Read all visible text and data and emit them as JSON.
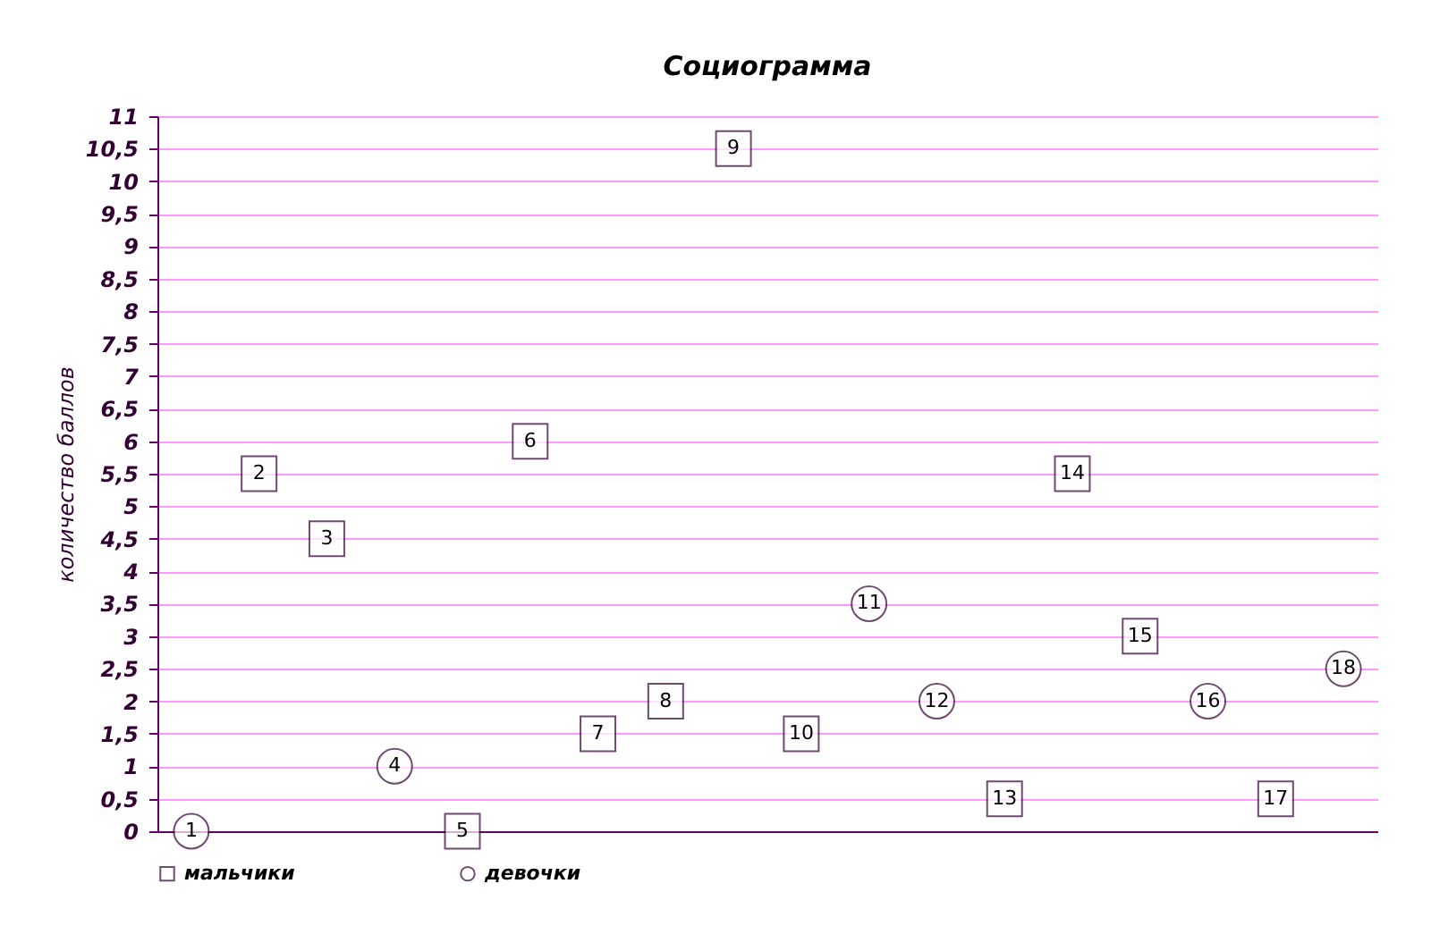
{
  "chart_data": {
    "type": "scatter",
    "title": "Социограмма",
    "ylabel": "количество баллов",
    "categories": [
      "1",
      "2",
      "3",
      "4",
      "5",
      "6",
      "7",
      "8",
      "9",
      "10",
      "11",
      "12",
      "13",
      "14",
      "15",
      "16",
      "17",
      "18"
    ],
    "series": [
      {
        "name": "мальчики",
        "color": "#330033",
        "marker": "square",
        "values": [
          null,
          5.5,
          4.5,
          null,
          0,
          6,
          1.5,
          2,
          10.5,
          1.5,
          null,
          null,
          0.5,
          5.5,
          3,
          null,
          0.5,
          null
        ]
      },
      {
        "name": "девочки",
        "color": "#330033",
        "marker": "circle",
        "values": [
          0,
          null,
          null,
          1,
          null,
          null,
          null,
          null,
          null,
          null,
          3.5,
          2,
          null,
          null,
          null,
          2,
          null,
          2.5
        ]
      }
    ],
    "ylim": [
      0,
      11
    ],
    "yticks": [
      0,
      {
        "value": 0.5,
        "label": "0,5"
      },
      1,
      {
        "value": 1.5,
        "label": "1,5"
      },
      2,
      {
        "value": 2.5,
        "label": "2,5"
      },
      3,
      {
        "value": 3.5,
        "label": "3,5"
      },
      4,
      {
        "value": 4.5,
        "label": "4,5"
      },
      5,
      {
        "value": 5.5,
        "label": "5,5"
      },
      6,
      {
        "value": 6.5,
        "label": "6,5"
      },
      7,
      {
        "value": 7.5,
        "label": "7,5"
      },
      8,
      {
        "value": 8.5,
        "label": "8,5"
      },
      9,
      {
        "value": 9.5,
        "label": "9,5"
      },
      10,
      {
        "value": 10.5,
        "label": "10,5"
      },
      11
    ],
    "grid": "y",
    "legend": "bottom",
    "tick_labels": "y"
  }
}
